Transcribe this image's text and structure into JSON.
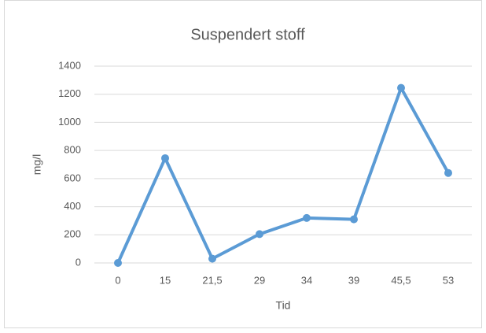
{
  "chart_data": {
    "type": "line",
    "title": "Suspendert stoff",
    "x_label": "Tid",
    "y_label": "mg/l",
    "categories": [
      "0",
      "15",
      "21,5",
      "29",
      "34",
      "39",
      "45,5",
      "53"
    ],
    "series": [
      {
        "name": "Suspendert stoff",
        "color": "#5b9bd5",
        "values": [
          0,
          745,
          30,
          205,
          320,
          310,
          1245,
          640
        ]
      }
    ],
    "ylim": [
      0,
      1400
    ],
    "yticks": [
      0,
      200,
      400,
      600,
      800,
      1000,
      1200,
      1400
    ],
    "grid": true
  }
}
